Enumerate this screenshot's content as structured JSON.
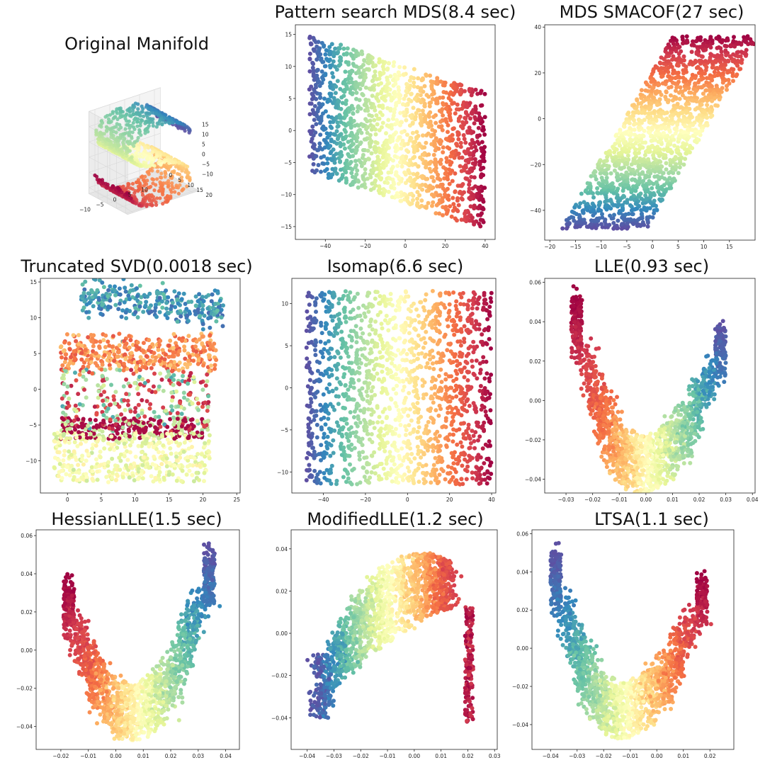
{
  "figure": {
    "panels": 9,
    "colormap": [
      "#9e0142",
      "#d53e4f",
      "#f46d43",
      "#fdae61",
      "#fee08b",
      "#ffffbf",
      "#e6f598",
      "#abdda4",
      "#66c2a5",
      "#3288bd",
      "#5e4fa2"
    ]
  },
  "chart_data": [
    {
      "id": "original",
      "type": "scatter3d",
      "title": "Original Manifold",
      "description_points": "S-curve with 3000 samples, colored by position along the manifold",
      "x_ticks": [
        "−10",
        "−5",
        "0",
        "5",
        "10"
      ],
      "y_ticks": [
        "0",
        "5",
        "10",
        "15",
        "20"
      ],
      "z_ticks": [
        "15",
        "10",
        "5",
        "0",
        "−5",
        "−10"
      ],
      "xlim": [
        -12,
        12
      ],
      "ylim": [
        0,
        21
      ],
      "zlim": [
        -12,
        15
      ]
    },
    {
      "id": "pattern_mds",
      "type": "scatter",
      "title": "Pattern search MDS(8.4 sec)",
      "shape": "rectangle",
      "xlim": [
        -55,
        45
      ],
      "ylim": [
        -17,
        16.5
      ],
      "x_ticks": [
        -40,
        -20,
        0,
        20,
        40
      ],
      "y_ticks": [
        15,
        10,
        5,
        0,
        -5,
        -10,
        -15
      ],
      "x_tick_labels": [
        "−40",
        "−20",
        "0",
        "20",
        "40"
      ],
      "y_tick_labels": [
        "15",
        "10",
        "5",
        "0",
        "−5",
        "−10",
        "−15"
      ]
    },
    {
      "id": "mds_smacof",
      "type": "scatter",
      "title": "MDS SMACOF(27 sec)",
      "shape": "parallelogram",
      "xlim": [
        -21,
        20
      ],
      "ylim": [
        -53,
        41
      ],
      "x_ticks": [
        -20,
        -15,
        -10,
        -5,
        0,
        5,
        10,
        15
      ],
      "y_ticks": [
        40,
        20,
        0,
        -20,
        -40
      ],
      "x_tick_labels": [
        "−20",
        "−15",
        "−10",
        "−5",
        "0",
        "5",
        "10",
        "15"
      ],
      "y_tick_labels": [
        "40",
        "20",
        "0",
        "−20",
        "−40"
      ]
    },
    {
      "id": "truncated_svd",
      "type": "scatter",
      "title": "Truncated SVD(0.0018 sec)",
      "shape": "svd_bands",
      "xlim": [
        -4,
        25.5
      ],
      "ylim": [
        -14.5,
        15.5
      ],
      "x_ticks": [
        0,
        5,
        10,
        15,
        20,
        25
      ],
      "y_ticks": [
        15,
        10,
        5,
        0,
        -5,
        -10
      ],
      "x_tick_labels": [
        "0",
        "5",
        "10",
        "15",
        "20",
        "25"
      ],
      "y_tick_labels": [
        "15",
        "10",
        "5",
        "0",
        "−5",
        "−10"
      ]
    },
    {
      "id": "isomap",
      "type": "scatter",
      "title": "Isomap(6.6 sec)",
      "shape": "rectangle",
      "xlim": [
        -55,
        42
      ],
      "ylim": [
        -12.5,
        13
      ],
      "x_ticks": [
        -40,
        -20,
        0,
        20,
        40
      ],
      "y_ticks": [
        10,
        5,
        0,
        -5,
        -10
      ],
      "x_tick_labels": [
        "−40",
        "−20",
        "0",
        "20",
        "40"
      ],
      "y_tick_labels": [
        "10",
        "5",
        "0",
        "−5",
        "−10"
      ]
    },
    {
      "id": "lle",
      "type": "scatter",
      "title": "LLE(0.93 sec)",
      "shape": "crescent_right",
      "xlim": [
        -0.038,
        0.041
      ],
      "ylim": [
        -0.047,
        0.062
      ],
      "x_ticks": [
        -0.03,
        -0.02,
        -0.01,
        0.0,
        0.01,
        0.02,
        0.03,
        0.04
      ],
      "y_ticks": [
        0.06,
        0.04,
        0.02,
        0.0,
        -0.02,
        -0.04
      ],
      "x_tick_labels": [
        "−0.03",
        "−0.02",
        "−0.01",
        "0.00",
        "0.01",
        "0.02",
        "0.03",
        "0.04"
      ],
      "y_tick_labels": [
        "0.06",
        "0.04",
        "0.02",
        "0.00",
        "−0.02",
        "−0.04"
      ]
    },
    {
      "id": "hessian_lle",
      "type": "scatter",
      "title": "HessianLLE(1.5 sec)",
      "shape": "crescent_right",
      "xlim": [
        -0.029,
        0.045
      ],
      "ylim": [
        -0.052,
        0.063
      ],
      "x_ticks": [
        -0.02,
        -0.01,
        0.0,
        0.01,
        0.02,
        0.03,
        0.04
      ],
      "y_ticks": [
        0.06,
        0.04,
        0.02,
        0.0,
        -0.02,
        -0.04
      ],
      "x_tick_labels": [
        "−0.02",
        "−0.01",
        "0.00",
        "0.01",
        "0.02",
        "0.03",
        "0.04"
      ],
      "y_tick_labels": [
        "0.06",
        "0.04",
        "0.02",
        "0.00",
        "−0.02",
        "−0.04"
      ]
    },
    {
      "id": "modified_lle",
      "type": "scatter",
      "title": "ModifiedLLE(1.2 sec)",
      "shape": "arch",
      "xlim": [
        -0.046,
        0.031
      ],
      "ylim": [
        -0.055,
        0.049
      ],
      "x_ticks": [
        -0.04,
        -0.03,
        -0.02,
        -0.01,
        0.0,
        0.01,
        0.02,
        0.03
      ],
      "y_ticks": [
        0.04,
        0.02,
        0.0,
        -0.02,
        -0.04
      ],
      "x_tick_labels": [
        "−0.04",
        "−0.03",
        "−0.02",
        "−0.01",
        "0.00",
        "0.01",
        "0.02",
        "0.03"
      ],
      "y_tick_labels": [
        "0.04",
        "0.02",
        "0.00",
        "−0.02",
        "−0.04"
      ]
    },
    {
      "id": "ltsa",
      "type": "scatter",
      "title": "LTSA(1.1 sec)",
      "shape": "crescent_left",
      "xlim": [
        -0.047,
        0.029
      ],
      "ylim": [
        -0.053,
        0.062
      ],
      "x_ticks": [
        -0.04,
        -0.03,
        -0.02,
        -0.01,
        0.0,
        0.01,
        0.02
      ],
      "y_ticks": [
        0.06,
        0.04,
        0.02,
        0.0,
        -0.02,
        -0.04
      ],
      "x_tick_labels": [
        "−0.04",
        "−0.03",
        "−0.02",
        "−0.01",
        "0.00",
        "0.01",
        "0.02"
      ],
      "y_tick_labels": [
        "0.06",
        "0.04",
        "0.02",
        "0.00",
        "−0.02",
        "−0.04"
      ]
    }
  ]
}
